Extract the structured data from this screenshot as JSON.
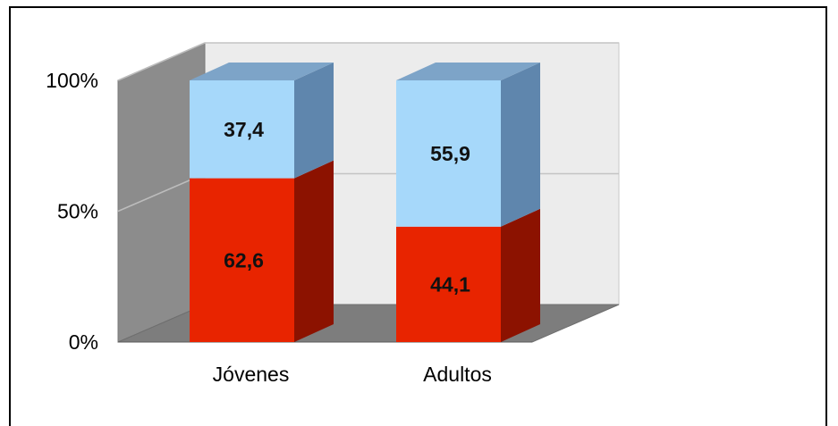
{
  "chart_data": {
    "type": "bar",
    "stacked": true,
    "percent": true,
    "three_d": true,
    "categories": [
      "Jóvenes",
      "Adultos"
    ],
    "series": [
      {
        "values": [
          62.6,
          44.1
        ],
        "labels": [
          "62,6",
          "44,1"
        ],
        "color": "#e82400",
        "side": "#8c1200",
        "top": "#c01a00"
      },
      {
        "values": [
          37.4,
          55.9
        ],
        "labels": [
          "37,4",
          "55,9"
        ],
        "color": "#a6d8fa",
        "side": "#5f86ad",
        "top": "#7da4c8"
      }
    ],
    "y_ticks": [
      "0%",
      "50%",
      "100%"
    ],
    "ylim": [
      0,
      100
    ],
    "grid": true,
    "legend": "none"
  }
}
